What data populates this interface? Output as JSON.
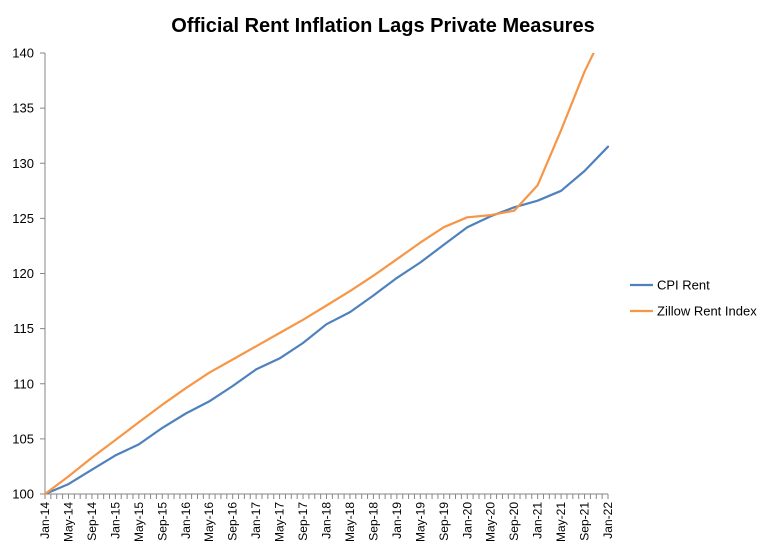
{
  "chart_data": {
    "type": "line",
    "title": "Official Rent Inflation Lags Private Measures",
    "xlabel": "",
    "ylabel": "",
    "ylim": [
      100,
      140
    ],
    "yticks": [
      100,
      105,
      110,
      115,
      120,
      125,
      130,
      135,
      140
    ],
    "x_tick_labels": [
      "Jan-14",
      "May-14",
      "Sep-14",
      "Jan-15",
      "May-15",
      "Sep-15",
      "Jan-16",
      "May-16",
      "Sep-16",
      "Jan-17",
      "May-17",
      "Sep-17",
      "Jan-18",
      "May-18",
      "Sep-18",
      "Jan-19",
      "May-19",
      "Sep-19",
      "Jan-20",
      "May-20",
      "Sep-20",
      "Jan-21",
      "May-21",
      "Sep-21",
      "Jan-22"
    ],
    "grid": false,
    "legend_position": "right",
    "series": [
      {
        "name": "CPI Rent",
        "color": "#4F81BD",
        "points": [
          [
            "Jan-14",
            100.0
          ],
          [
            "May-14",
            100.9
          ],
          [
            "Sep-14",
            102.2
          ],
          [
            "Jan-15",
            103.5
          ],
          [
            "May-15",
            104.5
          ],
          [
            "Sep-15",
            106.0
          ],
          [
            "Jan-16",
            107.3
          ],
          [
            "May-16",
            108.4
          ],
          [
            "Sep-16",
            109.8
          ],
          [
            "Jan-17",
            111.3
          ],
          [
            "May-17",
            112.3
          ],
          [
            "Sep-17",
            113.7
          ],
          [
            "Jan-18",
            115.4
          ],
          [
            "May-18",
            116.5
          ],
          [
            "Sep-18",
            118.0
          ],
          [
            "Jan-19",
            119.6
          ],
          [
            "May-19",
            121.0
          ],
          [
            "Sep-19",
            122.6
          ],
          [
            "Jan-20",
            124.2
          ],
          [
            "May-20",
            125.2
          ],
          [
            "Sep-20",
            126.0
          ],
          [
            "Jan-21",
            126.6
          ],
          [
            "May-21",
            127.5
          ],
          [
            "Sep-21",
            129.3
          ],
          [
            "Jan-22",
            131.5
          ]
        ]
      },
      {
        "name": "Zillow Rent Index",
        "color": "#F79646",
        "points": [
          [
            "Jan-14",
            100.0
          ],
          [
            "May-14",
            101.6
          ],
          [
            "Sep-14",
            103.3
          ],
          [
            "Jan-15",
            104.9
          ],
          [
            "May-15",
            106.5
          ],
          [
            "Sep-15",
            108.1
          ],
          [
            "Jan-16",
            109.6
          ],
          [
            "May-16",
            111.0
          ],
          [
            "Sep-16",
            112.2
          ],
          [
            "Jan-17",
            113.4
          ],
          [
            "May-17",
            114.6
          ],
          [
            "Sep-17",
            115.8
          ],
          [
            "Jan-18",
            117.1
          ],
          [
            "May-18",
            118.4
          ],
          [
            "Sep-18",
            119.8
          ],
          [
            "Jan-19",
            121.3
          ],
          [
            "May-19",
            122.8
          ],
          [
            "Sep-19",
            124.2
          ],
          [
            "Jan-20",
            125.1
          ],
          [
            "May-20",
            125.3
          ],
          [
            "Sep-20",
            125.7
          ],
          [
            "Jan-21",
            128.0
          ],
          [
            "May-21",
            133.0
          ],
          [
            "Sep-21",
            138.3
          ],
          [
            "Nov-21",
            140.5
          ]
        ]
      }
    ]
  }
}
